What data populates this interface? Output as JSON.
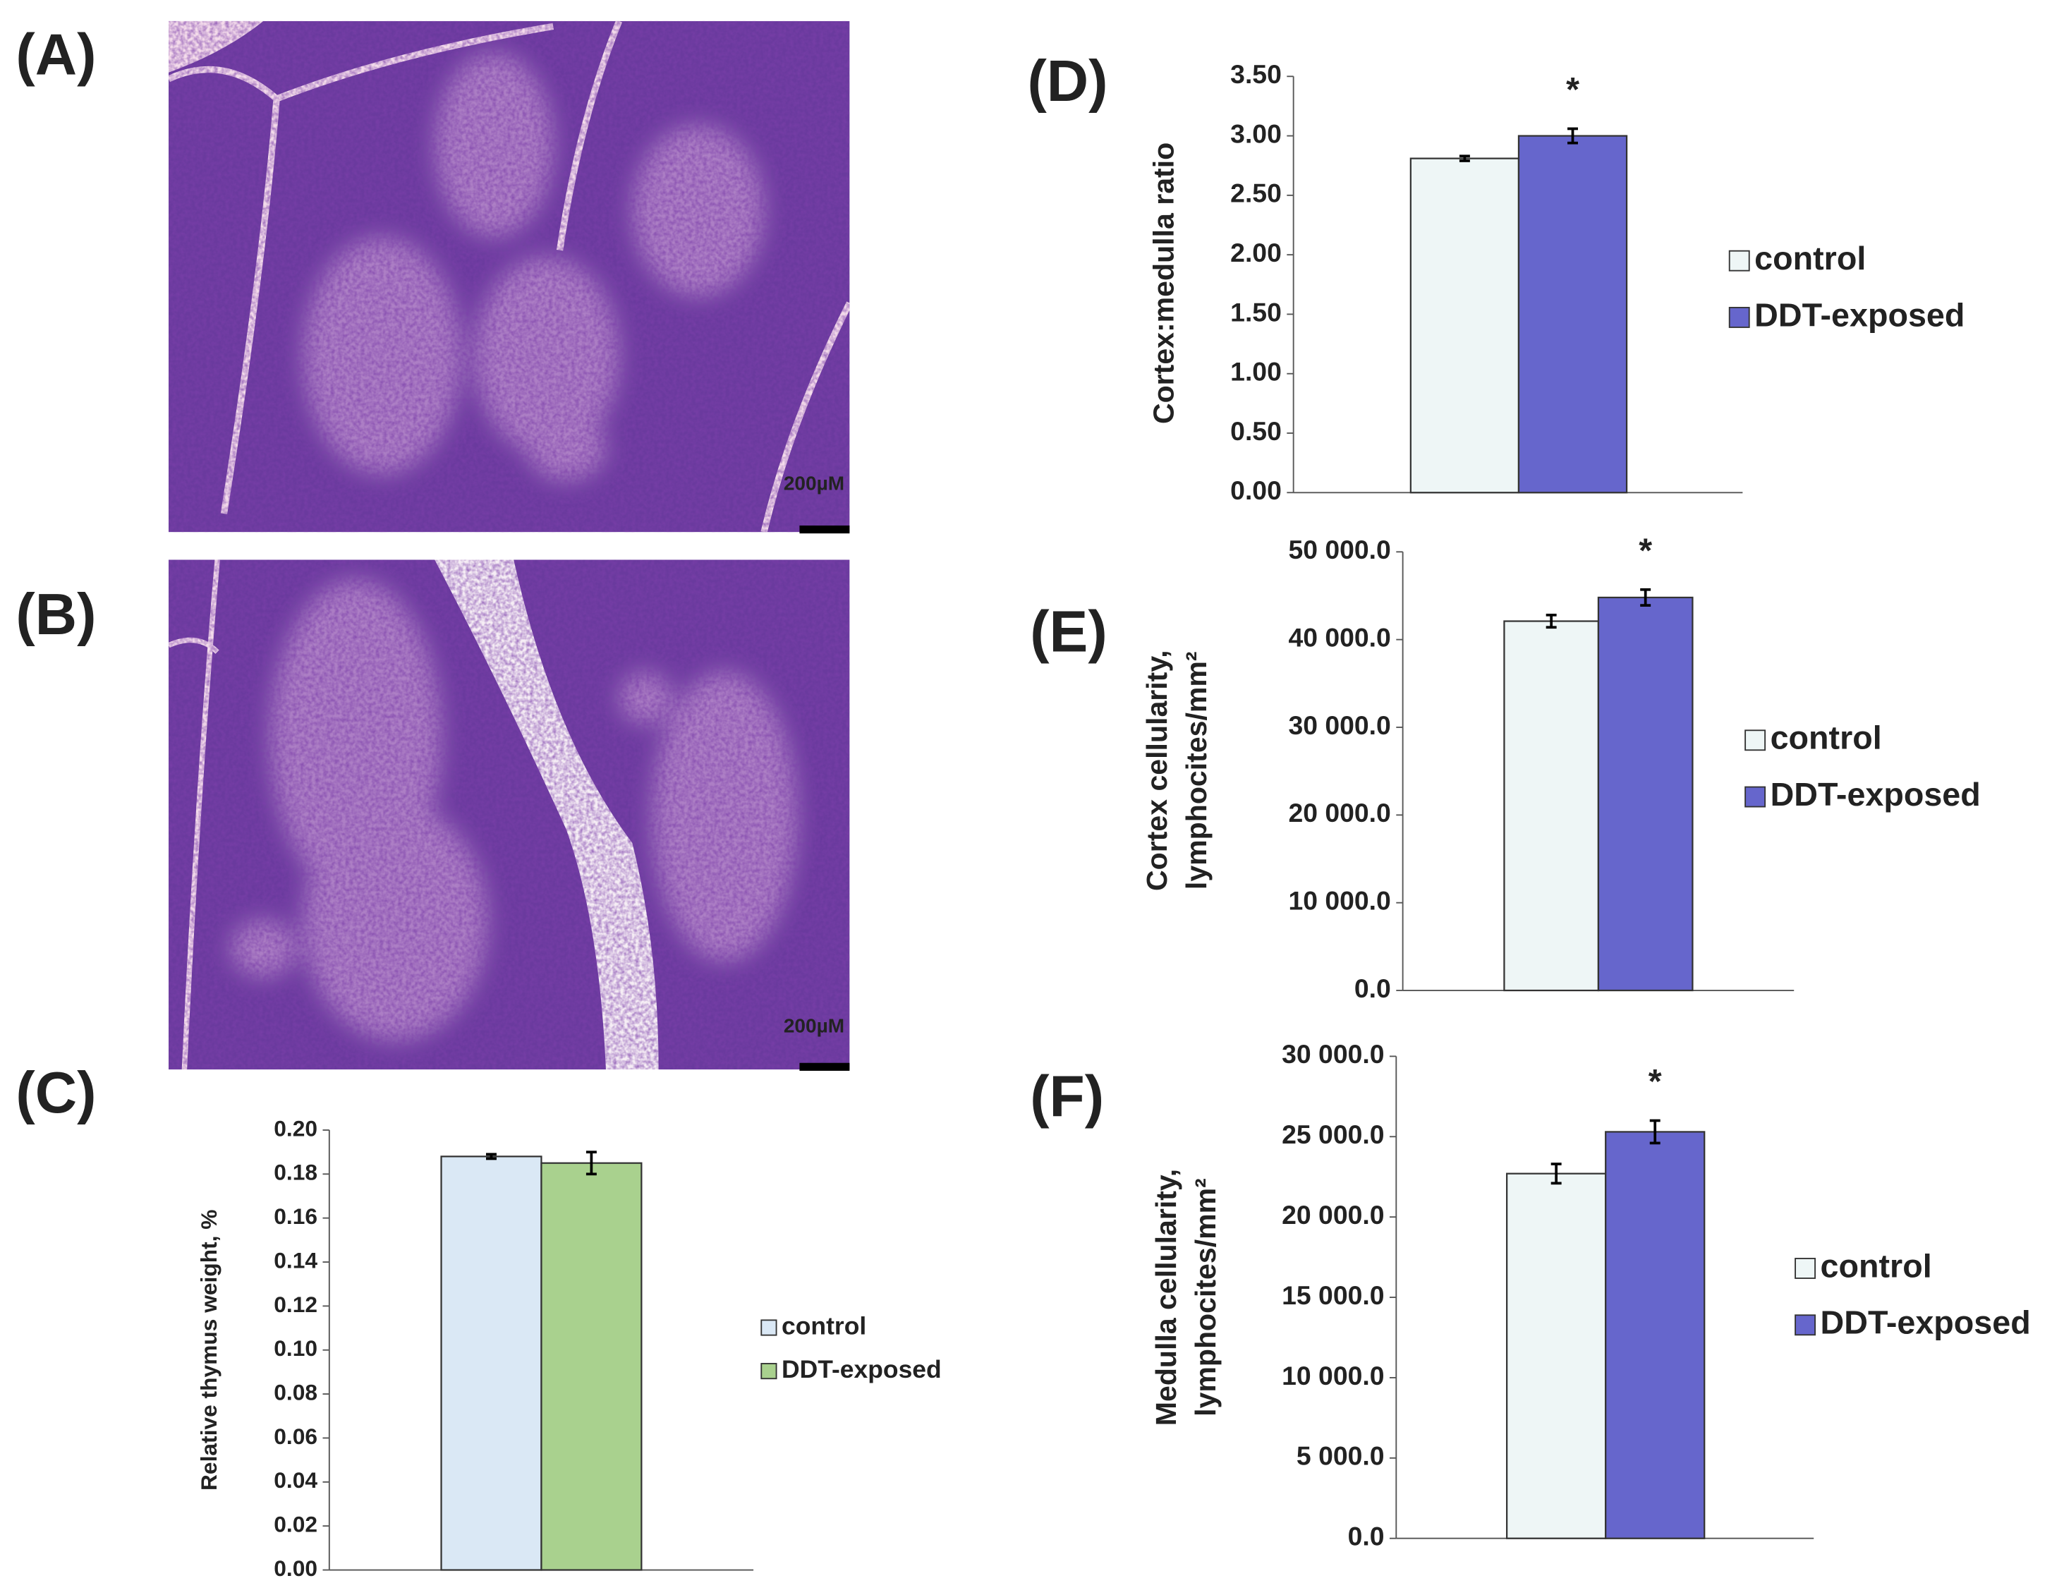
{
  "images": [
    {
      "label": "(A)",
      "scale_label": "200µM"
    },
    {
      "label": "(B)",
      "scale_label": "200µM"
    }
  ],
  "chart_data": [
    {
      "type": "bar",
      "label": "(C)",
      "ylabel": "Relative thymus weight, %",
      "series": [
        {
          "name": "control",
          "color": "#dae8f5",
          "values": [
            0.188
          ],
          "errors": [
            0.001
          ]
        },
        {
          "name": "DDT-exposed",
          "color": "#a9d18e",
          "values": [
            0.185
          ],
          "errors": [
            0.005
          ]
        }
      ],
      "ylim": [
        0,
        0.2
      ],
      "yticks": [
        {
          "value": 0,
          "label": "0.00"
        },
        {
          "value": 0.02,
          "label": "0.02"
        },
        {
          "value": 0.04,
          "label": "0.04"
        },
        {
          "value": 0.06,
          "label": "0.06"
        },
        {
          "value": 0.08,
          "label": "0.08"
        },
        {
          "value": 0.1,
          "label": "0.10"
        },
        {
          "value": 0.12,
          "label": "0.12"
        },
        {
          "value": 0.14,
          "label": "0.14"
        },
        {
          "value": 0.16,
          "label": "0.16"
        },
        {
          "value": 0.18,
          "label": "0.18"
        },
        {
          "value": 0.2,
          "label": "0.20"
        }
      ]
    },
    {
      "type": "bar",
      "label": "(D)",
      "ylabel": "Cortex:medulla ratio",
      "annotation": "*",
      "series": [
        {
          "name": "control",
          "color": "#eef6f6",
          "values": [
            2.81
          ],
          "errors": [
            0.02
          ]
        },
        {
          "name": "DDT-exposed",
          "color": "#6666cc",
          "values": [
            3.0
          ],
          "errors": [
            0.06
          ]
        }
      ],
      "ylim": [
        0,
        3.5
      ],
      "yticks": [
        {
          "value": 0,
          "label": "0.00"
        },
        {
          "value": 0.5,
          "label": "0.50"
        },
        {
          "value": 1,
          "label": "1.00"
        },
        {
          "value": 1.5,
          "label": "1.50"
        },
        {
          "value": 2,
          "label": "2.00"
        },
        {
          "value": 2.5,
          "label": "2.50"
        },
        {
          "value": 3,
          "label": "3.00"
        },
        {
          "value": 3.5,
          "label": "3.50"
        }
      ]
    },
    {
      "type": "bar",
      "label": "(E)",
      "ylabel": [
        "Cortex cellularity,",
        "lymphocites/mm²"
      ],
      "annotation": "*",
      "series": [
        {
          "name": "control",
          "color": "#eef6f6",
          "values": [
            42100
          ],
          "errors": [
            700
          ]
        },
        {
          "name": "DDT-exposed",
          "color": "#6666cc",
          "values": [
            44800
          ],
          "errors": [
            900
          ]
        }
      ],
      "ylim": [
        0,
        50000
      ],
      "yticks": [
        {
          "value": 0,
          "label": "0.0"
        },
        {
          "value": 10000,
          "label": "10 000.0"
        },
        {
          "value": 20000,
          "label": "20 000.0"
        },
        {
          "value": 30000,
          "label": "30 000.0"
        },
        {
          "value": 40000,
          "label": "40 000.0"
        },
        {
          "value": 50000,
          "label": "50 000.0"
        }
      ]
    },
    {
      "type": "bar",
      "label": "(F)",
      "ylabel": [
        "Medulla cellularity,",
        "lymphocites/mm²"
      ],
      "annotation": "*",
      "series": [
        {
          "name": "control",
          "color": "#eef6f6",
          "values": [
            22700
          ],
          "errors": [
            600
          ]
        },
        {
          "name": "DDT-exposed",
          "color": "#6666cc",
          "values": [
            25300
          ],
          "errors": [
            700
          ]
        }
      ],
      "ylim": [
        0,
        30000
      ],
      "yticks": [
        {
          "value": 0,
          "label": "0.0"
        },
        {
          "value": 5000,
          "label": "5 000.0"
        },
        {
          "value": 10000,
          "label": "10 000.0"
        },
        {
          "value": 15000,
          "label": "15 000.0"
        },
        {
          "value": 20000,
          "label": "20 000.0"
        },
        {
          "value": 25000,
          "label": "25 000.0"
        },
        {
          "value": 30000,
          "label": "30 000.0"
        }
      ]
    }
  ]
}
